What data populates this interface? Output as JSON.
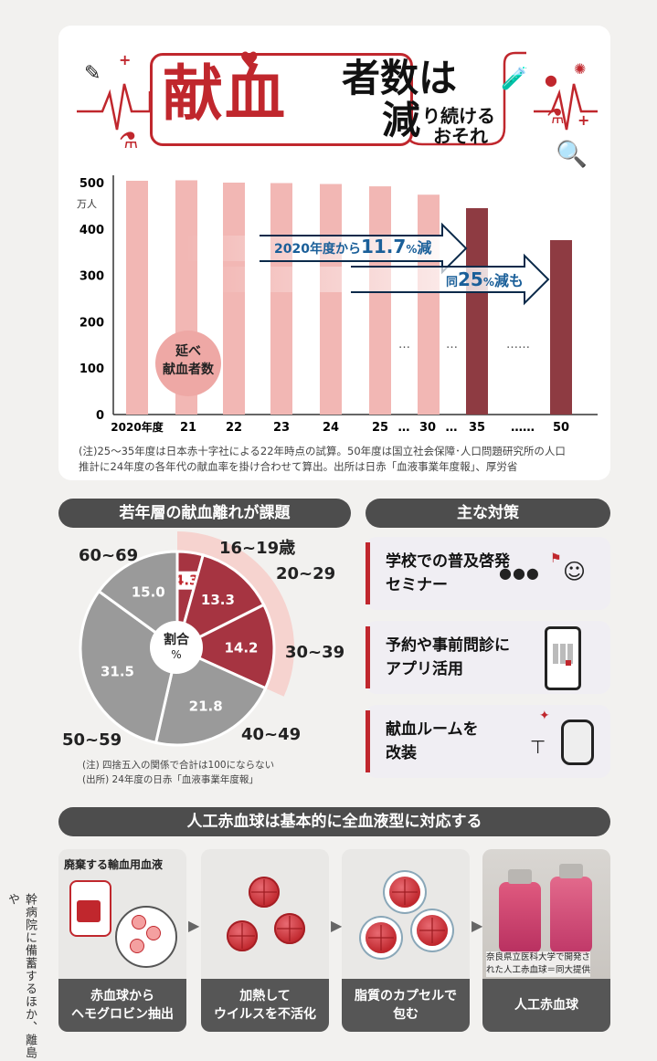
{
  "colors": {
    "accent": "#c0272d",
    "bar_light": "#f2b7b4",
    "bar_dark": "#8e3b42",
    "pie_dark": "#a63441",
    "pie_gray": "#9a9a9a"
  },
  "title": {
    "part1": "献血",
    "part2": "者数は",
    "part3": "減",
    "part4": "り続ける",
    "part5": "おそれ"
  },
  "bar_chart": {
    "unit": "万人",
    "y_ticks": [
      "500",
      "400",
      "300",
      "200",
      "100",
      "0"
    ],
    "x_ticks": [
      "2020年度",
      "21",
      "22",
      "23",
      "24",
      "25",
      "…",
      "30",
      "…",
      "35",
      "……",
      "50"
    ],
    "arrow1_text": {
      "a": "2020年度から",
      "b": "11.7",
      "c": "%",
      "d": "減"
    },
    "arrow2_text": {
      "a": "同",
      "b": "25",
      "c": "%",
      "d": "減も"
    },
    "series_label_1": "延べ",
    "series_label_2": "献血者数",
    "dots": [
      "…",
      "…",
      "……"
    ]
  },
  "chart_data": [
    {
      "type": "bar",
      "categories": [
        "2020年度",
        "21",
        "22",
        "23",
        "24",
        "25",
        "30",
        "35",
        "50"
      ],
      "values": [
        504,
        505,
        500,
        499,
        497,
        492,
        474,
        445,
        376
      ],
      "ylabel": "万人",
      "ylim": [
        0,
        500
      ],
      "projected_from": "35"
    },
    {
      "type": "pie",
      "title": "若年層の献血離れが課題",
      "center_label": "割合",
      "center_unit": "%",
      "slices": [
        {
          "label": "16~19歳",
          "value": 4.3
        },
        {
          "label": "20~29",
          "value": 13.3
        },
        {
          "label": "30~39",
          "value": 14.2
        },
        {
          "label": "40~49",
          "value": 21.8
        },
        {
          "label": "50~59",
          "value": 31.5
        },
        {
          "label": "60~69",
          "value": 15.0
        }
      ]
    }
  ],
  "bar_note": {
    "l1": "(注)25～35年度は日本赤十字社による22年時点の試算。50年度は国立社会保障･人口問題研究所の人口",
    "l2": "推計に24年度の各年代の献血率を掛け合わせて算出。出所は日赤「血液事業年度報」、厚労省"
  },
  "pie_section": {
    "header": "若年層の献血離れが課題",
    "center_label": "割合",
    "center_unit": "%",
    "values": [
      "4.3",
      "13.3",
      "14.2",
      "21.8",
      "31.5",
      "15.0"
    ],
    "labels": [
      "16~19歳",
      "20~29",
      "30~39",
      "40~49",
      "50~59",
      "60~69"
    ],
    "note1": "(注) 四捨五入の関係で合計は100にならない",
    "note2": "(出所) 24年度の日赤「血液事業年度報」"
  },
  "countermeasures": {
    "header": "主な対策",
    "items": [
      {
        "l1": "学校での普及啓発",
        "l2": "セミナー",
        "icon": "seminar-icon"
      },
      {
        "l1": "予約や事前問診に",
        "l2": "アプリ活用",
        "icon": "smartphone-icon"
      },
      {
        "l1": "献血ルームを",
        "l2": "改装",
        "icon": "chair-icon"
      }
    ]
  },
  "artificial": {
    "header": "人工赤血球は基本的に全血液型に対応する",
    "bag_label": "廃棄する輸血用血液",
    "steps": [
      {
        "l1": "赤血球から",
        "l2": "ヘモグロビン抽出"
      },
      {
        "l1": "加熱して",
        "l2": "ウイルスを不活化"
      },
      {
        "l1": "脂質のカプセルで",
        "l2": "包む"
      },
      {
        "l1": "人工赤血球",
        "l2": ""
      }
    ],
    "photo_caption1": "奈良県立医科大学で開発さ",
    "photo_caption2": "れた人工赤血球＝同大提供"
  },
  "side_text": "幹病院に備蓄するほか、離島や"
}
